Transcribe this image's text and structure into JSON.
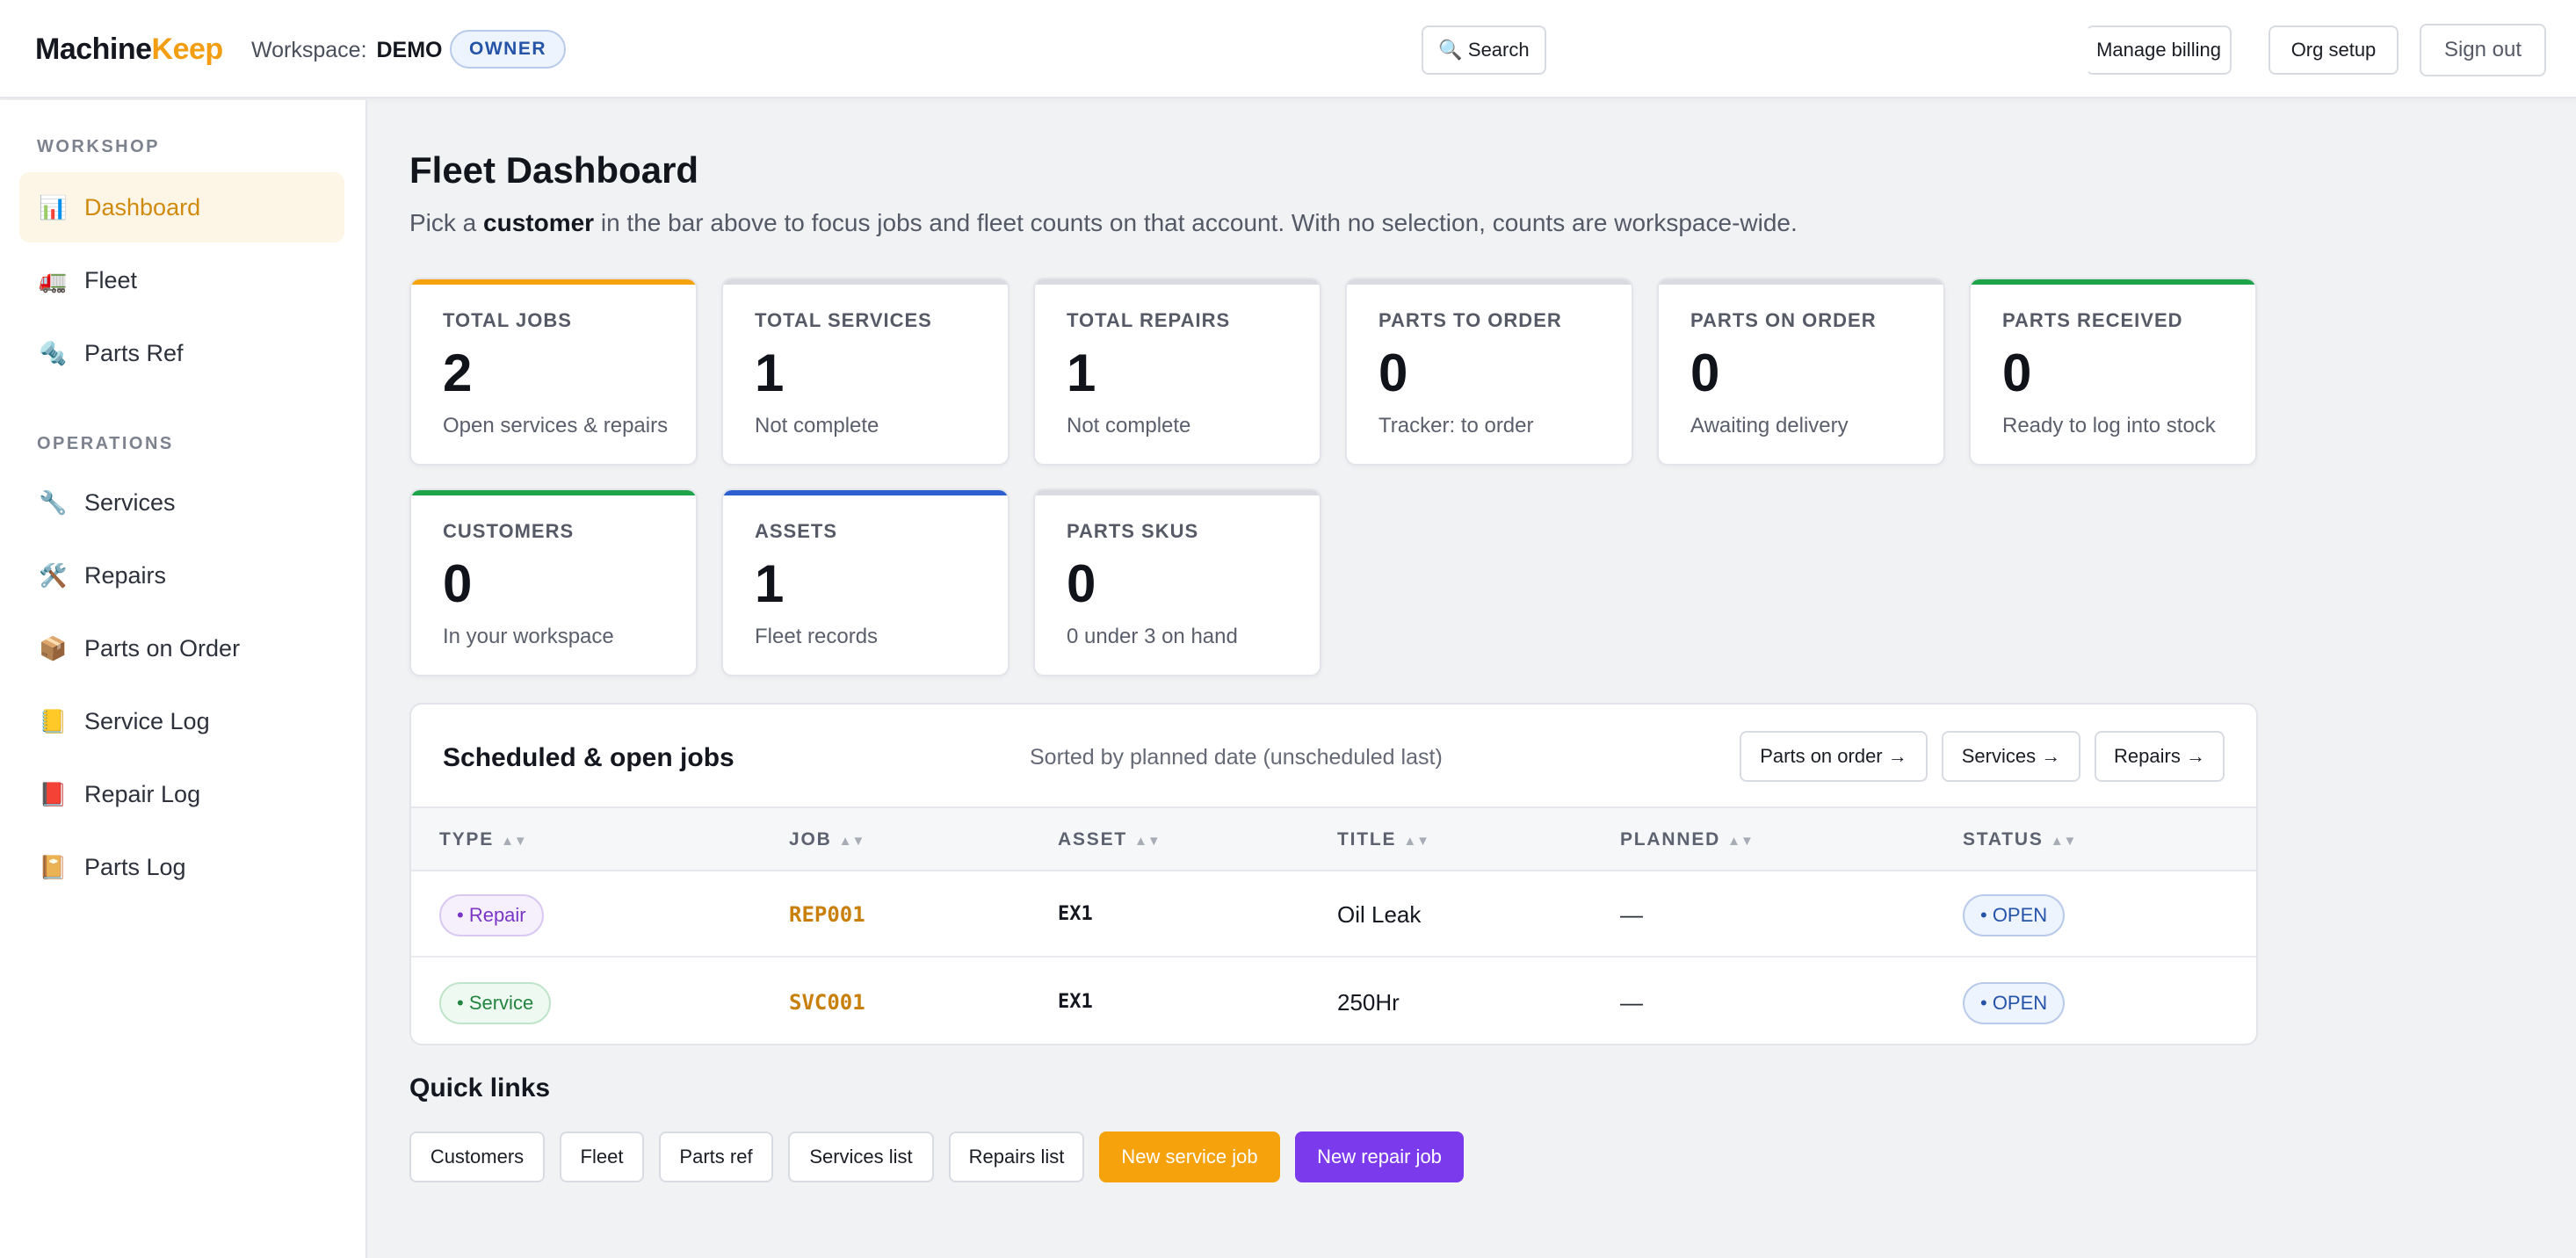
{
  "header": {
    "brand_part1": "Machine",
    "brand_part2": "Keep",
    "workspace_label": "Workspace:",
    "workspace_name": "DEMO",
    "role_badge": "OWNER",
    "search_label": "🔍 Search",
    "manage_billing": "Manage billing",
    "org_setup": "Org setup",
    "sign_out": "Sign out"
  },
  "sidebar": {
    "groups": [
      "WORKSHOP",
      "OPERATIONS"
    ],
    "items": [
      {
        "label": "Dashboard",
        "icon": "bar-chart-icon",
        "glyph": "📊",
        "active": true
      },
      {
        "label": "Fleet",
        "icon": "truck-icon",
        "glyph": "🚛"
      },
      {
        "label": "Parts Ref",
        "icon": "nut-bolt-icon",
        "glyph": "🔩"
      },
      {
        "label": "Services",
        "icon": "wrench-icon",
        "glyph": "🔧"
      },
      {
        "label": "Repairs",
        "icon": "hammer-wrench-icon",
        "glyph": "🛠️"
      },
      {
        "label": "Parts on Order",
        "icon": "package-icon",
        "glyph": "📦"
      },
      {
        "label": "Service Log",
        "icon": "yellow-notebook-icon",
        "glyph": "📒"
      },
      {
        "label": "Repair Log",
        "icon": "red-book-icon",
        "glyph": "📕"
      },
      {
        "label": "Parts Log",
        "icon": "notebook-icon",
        "glyph": "📔"
      }
    ]
  },
  "main": {
    "title": "Fleet Dashboard",
    "subtitle_pre": "Pick a ",
    "subtitle_bold": "customer",
    "subtitle_post": " in the bar above to focus jobs and fleet counts on that account. With no selection, counts are workspace-wide."
  },
  "cards": [
    {
      "label": "TOTAL JOBS",
      "value": "2",
      "sub": "Open services & repairs",
      "accent": "#f5a20c"
    },
    {
      "label": "TOTAL SERVICES",
      "value": "1",
      "sub": "Not complete",
      "accent": "#d9dbe1"
    },
    {
      "label": "TOTAL REPAIRS",
      "value": "1",
      "sub": "Not complete",
      "accent": "#d9dbe1"
    },
    {
      "label": "PARTS TO ORDER",
      "value": "0",
      "sub": "Tracker: to order",
      "accent": "#d9dbe1"
    },
    {
      "label": "PARTS ON ORDER",
      "value": "0",
      "sub": "Awaiting delivery",
      "accent": "#d9dbe1"
    },
    {
      "label": "PARTS RECEIVED",
      "value": "0",
      "sub": "Ready to log into stock",
      "accent": "#1fa34a"
    },
    {
      "label": "CUSTOMERS",
      "value": "0",
      "sub": "In your workspace",
      "accent": "#1fa34a"
    },
    {
      "label": "ASSETS",
      "value": "1",
      "sub": "Fleet records",
      "accent": "#2e5fd1"
    },
    {
      "label": "PARTS SKUS",
      "value": "0",
      "sub": "0 under 3 on hand",
      "accent": "#d9dbe1"
    }
  ],
  "jobs": {
    "title": "Scheduled & open jobs",
    "sort_note": "Sorted by planned date (unscheduled last)",
    "buttons": [
      "Parts on order →",
      "Services →",
      "Repairs →"
    ],
    "columns": [
      "TYPE",
      "JOB",
      "ASSET",
      "TITLE",
      "PLANNED",
      "STATUS"
    ],
    "sort_glyph": "▲▼",
    "rows": [
      {
        "type": "• Repair",
        "job": "REP001",
        "asset": "EX1",
        "title": "Oil Leak",
        "planned": "—",
        "status": "• OPEN"
      },
      {
        "type": "• Service",
        "job": "SVC001",
        "asset": "EX1",
        "title": "250Hr",
        "planned": "—",
        "status": "• OPEN"
      }
    ]
  },
  "quick_links": {
    "title": "Quick links",
    "buttons": [
      "Customers",
      "Fleet",
      "Parts ref",
      "Services list",
      "Repairs list",
      "New service job",
      "New repair job"
    ]
  },
  "colors": {
    "accent_orange": "#f5a20c",
    "accent_purple": "#7c3aed",
    "accent_green": "#1fa34a",
    "accent_blue": "#2e5fd1"
  }
}
